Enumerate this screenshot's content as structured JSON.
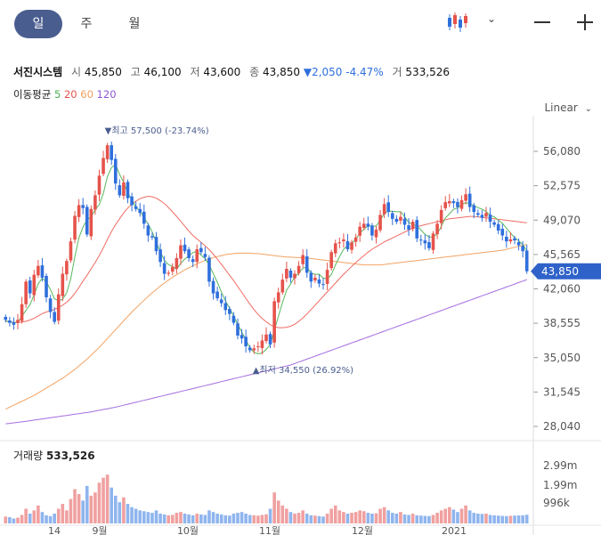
{
  "tabs": [
    "일",
    "주",
    "월"
  ],
  "active_tab": 0,
  "header": {
    "name": "서진시스템",
    "open_label": "시",
    "open": "45,850",
    "high_label": "고",
    "high": "46,100",
    "low_label": "저",
    "low": "43,600",
    "close_label": "종",
    "close": "43,850",
    "change": "▼2,050",
    "change_pct": "-4.47%",
    "vol_label": "거",
    "vol": "533,526"
  },
  "ma": {
    "label": "이동평균",
    "items": [
      {
        "period": "5",
        "color": "#4caf50"
      },
      {
        "period": "20",
        "color": "#e5534b"
      },
      {
        "period": "60",
        "color": "#f0a060"
      },
      {
        "period": "120",
        "color": "#8e57d6"
      }
    ]
  },
  "scale_label": "Linear",
  "price_axis": [
    "56,080",
    "52,575",
    "49,070",
    "45,565",
    "42,060",
    "38,555",
    "35,050",
    "31,545",
    "28,040"
  ],
  "current_price": "43,850",
  "high_annotation": "▼최고 57,500 (-23.74%)",
  "low_annotation": "▲최저 34,550 (26.92%)",
  "volume": {
    "label": "거래량",
    "value": "533,526",
    "axis": [
      "2.99m",
      "1.99m",
      "996k"
    ]
  },
  "x_axis": [
    "14",
    "9월",
    "10월",
    "11월",
    "12월",
    "2021"
  ],
  "colors": {
    "up": "#e5534b",
    "down": "#2f6fdc",
    "tab_active": "#4a5d8f"
  },
  "chart_data": {
    "type": "candlestick",
    "title": "서진시스템",
    "y_axis_ticks": [
      56080,
      52575,
      49070,
      45565,
      42060,
      38555,
      35050,
      31545,
      28040
    ],
    "high_point": {
      "value": 57500,
      "pct": -23.74
    },
    "low_point": {
      "value": 34550,
      "pct": 26.92
    },
    "closes": [
      38900,
      38600,
      38400,
      38900,
      40500,
      42800,
      41600,
      43500,
      44400,
      43200,
      41200,
      39700,
      38700,
      41500,
      43600,
      44900,
      46900,
      49500,
      50600,
      50300,
      47600,
      50200,
      51600,
      53600,
      55400,
      56700,
      55200,
      52800,
      51600,
      52900,
      51300,
      50600,
      50200,
      49800,
      48700,
      47500,
      47300,
      45900,
      44800,
      43600,
      43700,
      44300,
      45200,
      46500,
      45900,
      45200,
      44800,
      46100,
      45800,
      45300,
      42800,
      41600,
      41100,
      40600,
      39900,
      39500,
      38600,
      37300,
      37000,
      36200,
      35800,
      36000,
      36200,
      36800,
      37400,
      36400,
      40800,
      41700,
      43000,
      44100,
      43200,
      43600,
      44400,
      45500,
      43700,
      42800,
      43200,
      42600,
      42500,
      44000,
      45800,
      46700,
      46800,
      47100,
      46100,
      46800,
      47300,
      48400,
      48700,
      48400,
      47500,
      48100,
      49600,
      50700,
      49900,
      49200,
      48900,
      49400,
      48600,
      48100,
      48900,
      47200,
      47000,
      46700,
      46200,
      47700,
      48700,
      50100,
      50900,
      51000,
      50800,
      50400,
      51100,
      51700,
      50400,
      49900,
      49600,
      49300,
      49800,
      48900,
      48600,
      48000,
      47500,
      46900,
      47100,
      47000,
      46500,
      45900,
      43850
    ],
    "ma5": [
      38750,
      38720,
      38600,
      38700,
      39260,
      39880,
      40440,
      41460,
      42560,
      43140,
      42780,
      42000,
      41040,
      40860,
      41000,
      41660,
      43100,
      45300,
      47260,
      48360,
      49100,
      49400,
      50140,
      50640,
      51800,
      53500,
      54420,
      54740,
      53740,
      52920,
      51840,
      51140,
      50400,
      49980,
      49340,
      48660,
      47880,
      46840,
      45840,
      44960,
      44540,
      44340,
      44060,
      44660,
      45100,
      45420,
      45760,
      45880,
      45500,
      45140,
      44480,
      43620,
      42740,
      41720,
      40820,
      40100,
      39300,
      38440,
      37660,
      36860,
      36060,
      35600,
      35440,
      35520,
      35900,
      36380,
      37820,
      39260,
      40660,
      41920,
      42560,
      43280,
      43680,
      44160,
      44300,
      43680,
      43540,
      43560,
      43160,
      43080,
      43520,
      44500,
      45340,
      46100,
      46500,
      46740,
      47060,
      47780,
      48120,
      48520,
      48420,
      48480,
      49060,
      49760,
      49980,
      49960,
      49920,
      49940,
      49400,
      48820,
      48660,
      48460,
      48060,
      47600,
      47340,
      47360,
      47660,
      48440,
      49280,
      49720,
      50160,
      50320,
      50660,
      50840,
      50760,
      50540,
      50340,
      50180,
      49940,
      49550,
      49400,
      49060,
      48740,
      48250,
      47750,
      47280,
      46960,
      46580,
      45930
    ],
    "ma20": [
      38800,
      38700,
      38650,
      38640,
      38680,
      38760,
      38880,
      39060,
      39300,
      39540,
      39700,
      39820,
      39960,
      40150,
      40400,
      40700,
      41100,
      41600,
      42200,
      42850,
      43450,
      44100,
      44750,
      45450,
      46250,
      47100,
      47900,
      48600,
      49200,
      49800,
      50300,
      50700,
      51000,
      51250,
      51400,
      51500,
      51450,
      51300,
      51050,
      50750,
      50350,
      49900,
      49450,
      48950,
      48450,
      47950,
      47500,
      47150,
      46800,
      46450,
      46050,
      45600,
      45100,
      44550,
      44000,
      43450,
      42900,
      42300,
      41700,
      41100,
      40500,
      39950,
      39450,
      39050,
      38700,
      38400,
      38200,
      38100,
      38100,
      38150,
      38250,
      38450,
      38750,
      39100,
      39500,
      39950,
      40400,
      40850,
      41300,
      41750,
      42200,
      42650,
      43100,
      43550,
      43950,
      44350,
      44750,
      45100,
      45450,
      45800,
      46100,
      46350,
      46600,
      46850,
      47050,
      47250,
      47450,
      47650,
      47850,
      48050,
      48250,
      48400,
      48500,
      48600,
      48700,
      48800,
      48900,
      49000,
      49100,
      49200,
      49250,
      49300,
      49350,
      49400,
      49450,
      49450,
      49400,
      49350,
      49300,
      49250,
      49200,
      49150,
      49100,
      49050,
      49000,
      48950,
      48900,
      48850,
      48800
    ],
    "ma60": [
      29800,
      30000,
      30200,
      30400,
      30600,
      30800,
      31000,
      31200,
      31450,
      31700,
      31950,
      32200,
      32450,
      32700,
      32950,
      33250,
      33550,
      33850,
      34200,
      34550,
      34900,
      35300,
      35700,
      36100,
      36550,
      37000,
      37450,
      37900,
      38350,
      38800,
      39250,
      39700,
      40100,
      40500,
      40900,
      41300,
      41650,
      42000,
      42350,
      42650,
      42950,
      43250,
      43500,
      43750,
      44000,
      44200,
      44400,
      44600,
      44800,
      44950,
      45100,
      45250,
      45350,
      45450,
      45550,
      45600,
      45650,
      45700,
      45700,
      45700,
      45700,
      45650,
      45650,
      45600,
      45550,
      45500,
      45450,
      45400,
      45350,
      45300,
      45300,
      45250,
      45250,
      45200,
      45200,
      45150,
      45100,
      45050,
      45000,
      44950,
      44900,
      44850,
      44800,
      44750,
      44700,
      44650,
      44600,
      44550,
      44500,
      44500,
      44500,
      44500,
      44500,
      44550,
      44600,
      44650,
      44700,
      44750,
      44800,
      44850,
      44900,
      44950,
      45000,
      45050,
      45100,
      45150,
      45200,
      45250,
      45300,
      45350,
      45400,
      45450,
      45500,
      45550,
      45600,
      45650,
      45700,
      45750,
      45800,
      45850,
      45900,
      45950,
      46000,
      46100,
      46200,
      46300,
      46400,
      46500,
      46600
    ],
    "ma120": [
      28300,
      28350,
      28400,
      28450,
      28500,
      28560,
      28620,
      28680,
      28740,
      28800,
      28860,
      28920,
      28980,
      29040,
      29100,
      29160,
      29220,
      29280,
      29340,
      29400,
      29460,
      29520,
      29600,
      29680,
      29760,
      29840,
      29920,
      30000,
      30100,
      30200,
      30300,
      30400,
      30500,
      30600,
      30700,
      30800,
      30900,
      31000,
      31100,
      31200,
      31300,
      31400,
      31500,
      31600,
      31700,
      31800,
      31900,
      32000,
      32100,
      32200,
      32300,
      32400,
      32500,
      32600,
      32700,
      32800,
      32900,
      33000,
      33100,
      33200,
      33300,
      33400,
      33500,
      33600,
      33700,
      33800,
      33900,
      34000,
      34100,
      34200,
      34300,
      34450,
      34600,
      34750,
      34900,
      35050,
      35200,
      35350,
      35500,
      35650,
      35800,
      35950,
      36100,
      36250,
      36400,
      36550,
      36700,
      36850,
      37000,
      37150,
      37300,
      37450,
      37600,
      37750,
      37900,
      38050,
      38200,
      38350,
      38500,
      38650,
      38800,
      38950,
      39100,
      39250,
      39400,
      39550,
      39700,
      39850,
      40000,
      40150,
      40300,
      40450,
      40600,
      40750,
      40900,
      41050,
      41200,
      41350,
      41500,
      41650,
      41800,
      41950,
      42100,
      42250,
      42400,
      42550,
      42700,
      42850,
      43000
    ],
    "volume_axis": [
      2990000,
      1990000,
      996000
    ],
    "volume_last": 533526,
    "volumes": [
      420000,
      380000,
      300000,
      350000,
      520000,
      900000,
      600000,
      800000,
      1100000,
      700000,
      500000,
      450000,
      600000,
      900000,
      1200000,
      800000,
      1500000,
      2100000,
      1800000,
      1400000,
      2300000,
      1700000,
      1900000,
      2500000,
      2800000,
      2990000,
      2200000,
      1700000,
      1300000,
      1600000,
      1200000,
      1000000,
      900000,
      800000,
      750000,
      700000,
      650000,
      800000,
      600000,
      550000,
      500000,
      520000,
      650000,
      700000,
      600000,
      550000,
      500000,
      600000,
      550000,
      520000,
      800000,
      700000,
      600000,
      550000,
      500000,
      480000,
      600000,
      650000,
      700000,
      600000,
      520000,
      500000,
      480000,
      520000,
      560000,
      900000,
      1900000,
      1400000,
      1100000,
      900000,
      700000,
      600000,
      650000,
      800000,
      600000,
      500000,
      480000,
      450000,
      420000,
      600000,
      900000,
      1100000,
      800000,
      700000,
      600000,
      650000,
      700000,
      800000,
      750000,
      650000,
      600000,
      620000,
      900000,
      1000000,
      800000,
      650000,
      600000,
      700000,
      550000,
      520000,
      600000,
      500000,
      480000,
      460000,
      450000,
      520000,
      650000,
      800000,
      900000,
      1000000,
      850000,
      700000,
      900000,
      1100000,
      800000,
      650000,
      600000,
      580000,
      600000,
      520000,
      500000,
      480000,
      460000,
      450000,
      470000,
      480000,
      490000,
      500000,
      533526
    ]
  }
}
